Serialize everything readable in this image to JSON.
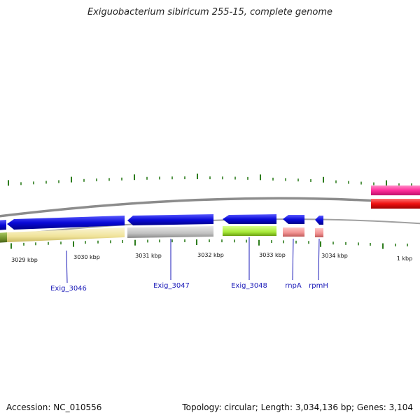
{
  "title": "Exiguobacterium sibiricum 255-15, complete genome",
  "footer": {
    "accession": "Accession: NC_010556",
    "topology": "Topology: circular; Length: 3,034,136 bp; Genes: 3,104"
  },
  "scale_labels": [
    "3029 kbp",
    "3030 kbp",
    "3031 kbp",
    "3032 kbp",
    "3033 kbp",
    "3034 kbp",
    "1 kbp"
  ],
  "gene_labels": [
    "Exig_3046",
    "Exig_3047",
    "Exig_3048",
    "rnpA",
    "rpmH"
  ],
  "colors": {
    "backbone": "#8c8c8c",
    "tick": "#2e7d1e",
    "cds_forward_strand": "#0a0ad8",
    "cds_reverse_strand": "#ff2020",
    "rna_strand": "#ff2e9a",
    "label_line": "#1a1ab8",
    "label_text": "#1a1ab8",
    "cog_yellow": "#f2e6a0",
    "cog_gray": "#c4c4c4",
    "cog_lime": "#a8ea3a",
    "cog_salmon": "#ef8f8f",
    "cog_olive": "#6f8f2a"
  }
}
